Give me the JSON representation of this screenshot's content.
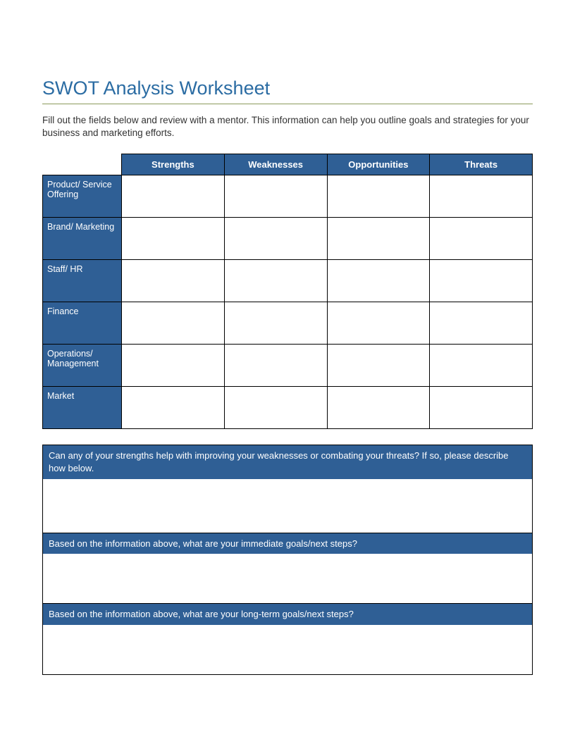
{
  "colors": {
    "title": "#2b6ca3",
    "rule": "#8a9a5b",
    "header_bg": "#2f5f95",
    "header_fg": "#ffffff",
    "border": "#000000",
    "text": "#333333",
    "background": "#ffffff"
  },
  "title": "SWOT Analysis Worksheet",
  "intro": "Fill out the fields below and review with a mentor.  This information can help you outline goals and strategies for your business and marketing efforts.",
  "swot": {
    "columns": [
      "Strengths",
      "Weaknesses",
      "Opportunities",
      "Threats"
    ],
    "rows": [
      {
        "label": "Product/ Service Offering",
        "cells": [
          "",
          "",
          "",
          ""
        ]
      },
      {
        "label": "Brand/ Marketing",
        "cells": [
          "",
          "",
          "",
          ""
        ]
      },
      {
        "label": "Staff/ HR",
        "cells": [
          "",
          "",
          "",
          ""
        ]
      },
      {
        "label": "Finance",
        "cells": [
          "",
          "",
          "",
          ""
        ]
      },
      {
        "label": "Operations/ Management",
        "cells": [
          "",
          "",
          "",
          ""
        ]
      },
      {
        "label": "Market",
        "cells": [
          "",
          "",
          "",
          ""
        ]
      }
    ]
  },
  "questions": [
    {
      "prompt": "Can any of your strengths help with improving your weaknesses or combating your threats?  If so, please describe how below.",
      "answer": ""
    },
    {
      "prompt": "Based on the information above, what are your immediate goals/next steps?",
      "answer": ""
    },
    {
      "prompt": "Based on the information above, what are your long-term goals/next steps?",
      "answer": ""
    }
  ]
}
